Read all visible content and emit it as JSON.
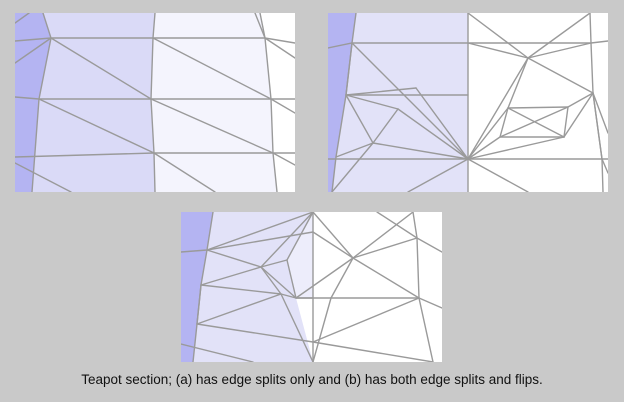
{
  "figure": {
    "caption": "Teapot section; (a) has edge splits only and (b) has both edge splits and flips."
  },
  "colors": {
    "background": "#c9c9c9",
    "mesh_edge": "#9a9a9a",
    "fill_strong": "#b4b4f2",
    "fill_medium": "#d9d9f7",
    "fill_light": "#ececfb",
    "fill_lightest": "#f6f6fd",
    "fill_white": "#ffffff"
  },
  "panels": [
    {
      "name": "top-left-mesh"
    },
    {
      "name": "top-right-mesh"
    },
    {
      "name": "bottom-mesh"
    }
  ]
}
